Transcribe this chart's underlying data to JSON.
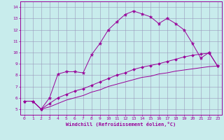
{
  "xlabel": "Windchill (Refroidissement éolien,°C)",
  "bg_color": "#c8ecec",
  "line_color": "#990099",
  "grid_color": "#9999bb",
  "xlim": [
    -0.5,
    23.5
  ],
  "ylim": [
    4.5,
    14.5
  ],
  "xticks": [
    0,
    1,
    2,
    3,
    4,
    5,
    6,
    7,
    8,
    9,
    10,
    11,
    12,
    13,
    14,
    15,
    16,
    17,
    18,
    19,
    20,
    21,
    22,
    23
  ],
  "yticks": [
    5,
    6,
    7,
    8,
    9,
    10,
    11,
    12,
    13,
    14
  ],
  "series1_x": [
    0,
    1,
    2,
    3,
    4,
    5,
    6,
    7,
    8,
    9,
    10,
    11,
    12,
    13,
    14,
    15,
    16,
    17,
    18,
    19,
    20,
    21,
    22,
    23
  ],
  "series1_y": [
    5.7,
    5.7,
    5.0,
    6.0,
    8.1,
    8.3,
    8.3,
    8.2,
    9.8,
    10.8,
    12.0,
    12.7,
    13.35,
    13.65,
    13.4,
    13.15,
    12.55,
    13.0,
    12.55,
    12.0,
    10.8,
    9.5,
    10.0,
    8.8
  ],
  "series2_x": [
    0,
    1,
    2,
    3,
    4,
    5,
    6,
    7,
    8,
    9,
    10,
    11,
    12,
    13,
    14,
    15,
    16,
    17,
    18,
    19,
    20,
    21,
    22,
    23
  ],
  "series2_y": [
    5.7,
    5.7,
    5.0,
    5.5,
    6.0,
    6.3,
    6.6,
    6.8,
    7.1,
    7.4,
    7.7,
    8.0,
    8.2,
    8.5,
    8.7,
    8.85,
    9.0,
    9.2,
    9.4,
    9.6,
    9.75,
    9.85,
    9.95,
    8.8
  ],
  "series3_x": [
    0,
    1,
    2,
    3,
    4,
    5,
    6,
    7,
    8,
    9,
    10,
    11,
    12,
    13,
    14,
    15,
    16,
    17,
    18,
    19,
    20,
    21,
    22,
    23
  ],
  "series3_y": [
    5.7,
    5.7,
    5.0,
    5.2,
    5.5,
    5.8,
    6.0,
    6.2,
    6.5,
    6.7,
    7.0,
    7.2,
    7.4,
    7.6,
    7.8,
    7.9,
    8.1,
    8.2,
    8.35,
    8.45,
    8.55,
    8.65,
    8.75,
    8.8
  ]
}
